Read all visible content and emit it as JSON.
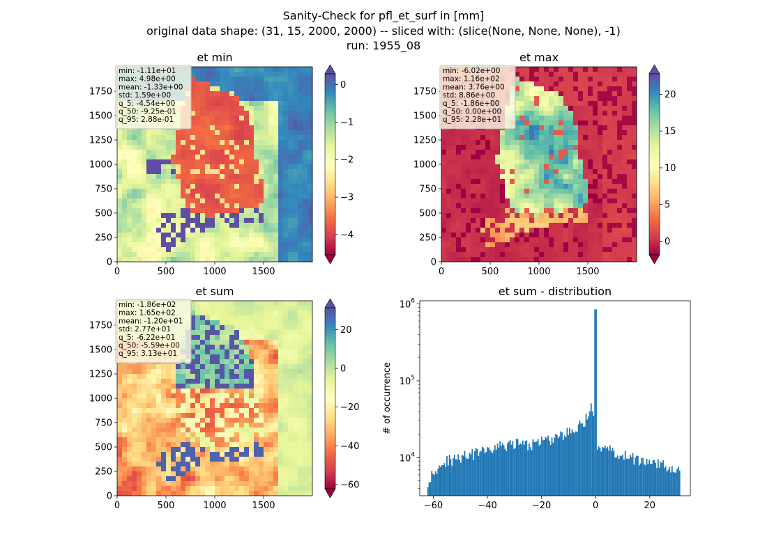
{
  "figure": {
    "title_lines": [
      "Sanity-Check for pfl_et_surf in [mm]",
      "original data shape: (31, 15, 2000, 2000) -- sliced with: (slice(None, None, None), -1)",
      "run: 1955_08"
    ]
  },
  "chart_data": [
    {
      "type": "heatmap",
      "title": "et min",
      "colormap": "Spectral",
      "x_ticks": [
        0,
        500,
        1000,
        1500
      ],
      "y_ticks": [
        0,
        250,
        500,
        750,
        1000,
        1250,
        1500,
        1750
      ],
      "xlim": [
        0,
        2000
      ],
      "ylim": [
        0,
        2000
      ],
      "colorbar": {
        "range": [
          -4.54,
          0.288
        ],
        "ticks": [
          0,
          -1,
          -2,
          -3,
          -4
        ],
        "extend": "both"
      },
      "stats": [
        "min: -1.11e+01",
        "max: 4.98e+00",
        "mean: -1.33e+00",
        "std: 1.59e+00",
        "q_5: -4.54e+00",
        "q_50: -9.25e-01",
        "q_95: 2.88e-01"
      ]
    },
    {
      "type": "heatmap",
      "title": "et max",
      "colormap": "Spectral",
      "x_ticks": [
        0,
        500,
        1000,
        1500
      ],
      "y_ticks": [
        0,
        250,
        500,
        750,
        1000,
        1250,
        1500,
        1750
      ],
      "xlim": [
        0,
        2000
      ],
      "ylim": [
        0,
        2000
      ],
      "colorbar": {
        "range": [
          -1.86,
          22.8
        ],
        "ticks": [
          0,
          5,
          10,
          15,
          20
        ],
        "extend": "both"
      },
      "stats": [
        "min: -6.02e+00",
        "max: 1.16e+02",
        "mean: 3.76e+00",
        "std: 8.86e+00",
        "q_5: -1.86e+00",
        "q_50: 0.00e+00",
        "q_95: 2.28e+01"
      ]
    },
    {
      "type": "heatmap",
      "title": "et sum",
      "colormap": "Spectral",
      "x_ticks": [
        0,
        500,
        1000,
        1500
      ],
      "y_ticks": [
        0,
        250,
        500,
        750,
        1000,
        1250,
        1500,
        1750
      ],
      "xlim": [
        0,
        2000
      ],
      "ylim": [
        0,
        2000
      ],
      "colorbar": {
        "range": [
          -62.2,
          31.3
        ],
        "ticks": [
          20,
          0,
          -20,
          -40,
          -60
        ],
        "extend": "both"
      },
      "stats": [
        "min: -1.86e+02",
        "max: 1.65e+02",
        "mean: -1.20e+01",
        "std: 2.77e+01",
        "q_5: -6.22e+01",
        "q_50: -5.59e+00",
        "q_95: 3.13e+01"
      ]
    },
    {
      "type": "bar",
      "title": "et sum - distribution",
      "xlabel": "",
      "ylabel": "# of occurrence",
      "y_scale": "log",
      "xlim": [
        -65,
        35
      ],
      "ylim": [
        3200,
        1100000
      ],
      "x_ticks": [
        -60,
        -40,
        -20,
        0,
        20
      ],
      "y_ticks": [
        10000,
        100000,
        1000000
      ],
      "y_tick_labels": [
        [
          "10",
          "4"
        ],
        [
          "10",
          "5"
        ],
        [
          "10",
          "6"
        ]
      ],
      "bar_color": "#1f77b4",
      "bin_range": [
        -62.2,
        31.3
      ],
      "bin_count": 200,
      "profile_x": [
        -62,
        -60,
        -55,
        -50,
        -45,
        -40,
        -35,
        -30,
        -25,
        -20,
        -15,
        -10,
        -7,
        -5,
        -3,
        -1.5,
        -0.5,
        0,
        0.3,
        1,
        3,
        5,
        10,
        15,
        20,
        25,
        28,
        31
      ],
      "profile_y": [
        5000,
        6800,
        9000,
        10200,
        11200,
        12500,
        14000,
        15500,
        14500,
        16000,
        18000,
        21500,
        24500,
        28000,
        34000,
        50000,
        30000,
        850000,
        15000,
        14000,
        13000,
        12500,
        11000,
        9500,
        8500,
        8000,
        7000,
        6500
      ]
    }
  ]
}
